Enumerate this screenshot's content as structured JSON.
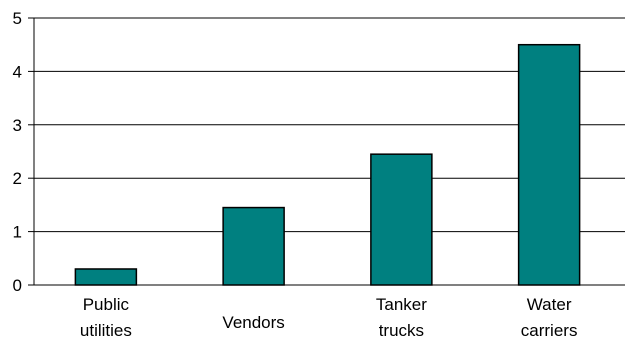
{
  "chart_data": {
    "type": "bar",
    "title": "",
    "xlabel": "",
    "ylabel": "",
    "categories": [
      [
        "Public",
        "utilities"
      ],
      [
        "Vendors"
      ],
      [
        "Tanker",
        "trucks"
      ],
      [
        "Water",
        "carriers"
      ]
    ],
    "values": [
      0.3,
      1.45,
      2.45,
      4.5
    ],
    "ylim": [
      0,
      5
    ],
    "yticks": [
      "0",
      "1",
      "2",
      "3",
      "4",
      "5"
    ],
    "grid": true,
    "legend": "none",
    "bar_color": "#008080"
  }
}
